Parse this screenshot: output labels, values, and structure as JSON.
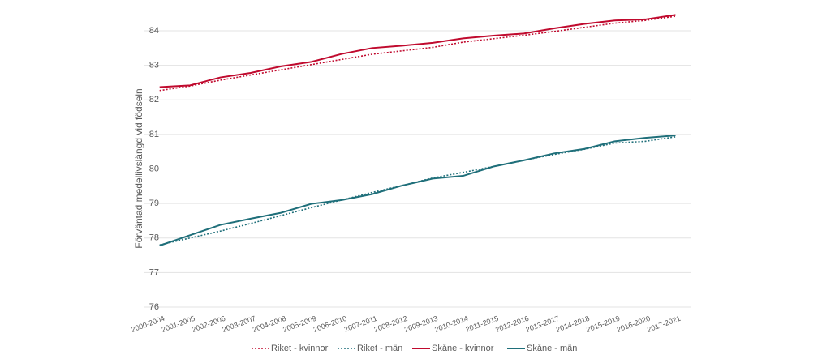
{
  "chart_data": {
    "type": "line",
    "y_label": "Förväntad medellivslängd vid  födseln",
    "categories": [
      "2000-2004",
      "2001-2005",
      "2002-2006",
      "2003-2007",
      "2004-2008",
      "2005-2009",
      "2006-2010",
      "2007-2011",
      "2008-2012",
      "2009-2013",
      "2010-2014",
      "2011-2015",
      "2012-2016",
      "2013-2017",
      "2014-2018",
      "2015-2019",
      "2016-2020",
      "2017-2021"
    ],
    "series": [
      {
        "name": "Riket - kvinnor",
        "color": "#c00a2e",
        "style": "dotted",
        "values": [
          82.27,
          82.4,
          82.57,
          82.72,
          82.87,
          83.02,
          83.17,
          83.32,
          83.42,
          83.52,
          83.67,
          83.77,
          83.87,
          83.98,
          84.1,
          84.22,
          84.3,
          84.42
        ]
      },
      {
        "name": "Riket - män",
        "color": "#1f6f7a",
        "style": "dotted",
        "values": [
          77.8,
          78.0,
          78.2,
          78.42,
          78.65,
          78.88,
          79.1,
          79.32,
          79.52,
          79.74,
          79.9,
          80.07,
          80.25,
          80.42,
          80.57,
          80.75,
          80.8,
          80.93
        ]
      },
      {
        "name": "Skåne - kvinnor",
        "color": "#c00a2e",
        "style": "solid",
        "values": [
          82.37,
          82.42,
          82.65,
          82.78,
          82.97,
          83.1,
          83.33,
          83.5,
          83.57,
          83.65,
          83.78,
          83.86,
          83.92,
          84.07,
          84.2,
          84.3,
          84.33,
          84.46
        ]
      },
      {
        "name": "Skåne - män",
        "color": "#1f6f7a",
        "style": "solid",
        "values": [
          77.78,
          78.08,
          78.38,
          78.56,
          78.73,
          78.99,
          79.1,
          79.27,
          79.52,
          79.72,
          79.8,
          80.07,
          80.25,
          80.45,
          80.58,
          80.8,
          80.9,
          80.97
        ]
      }
    ],
    "ylim": [
      76,
      84
    ],
    "yticks": [
      76,
      77,
      78,
      79,
      80,
      81,
      82,
      83,
      84
    ],
    "grid": true,
    "legend": "bottom"
  }
}
